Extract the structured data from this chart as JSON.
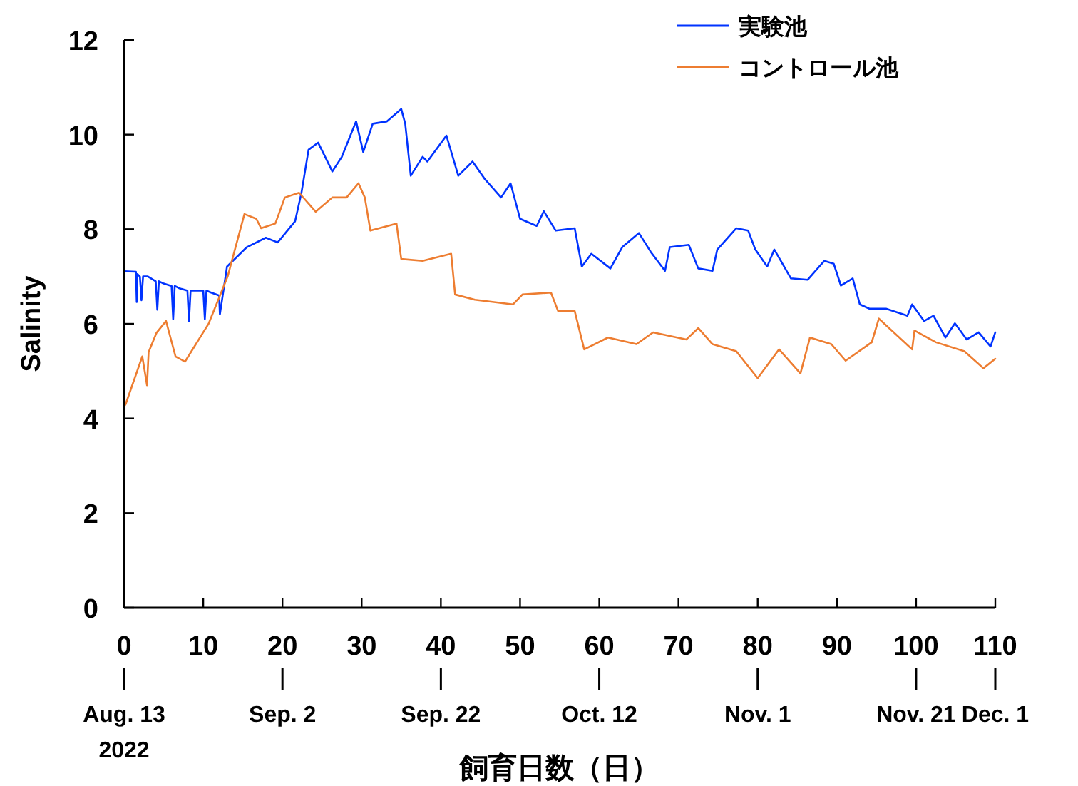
{
  "chart_data": {
    "type": "line",
    "ylabel": "Salinity",
    "xlabel": "飼育日数（日）",
    "xlim": [
      0,
      110
    ],
    "ylim": [
      0,
      12
    ],
    "xticks": [
      0,
      10,
      20,
      30,
      40,
      50,
      60,
      70,
      80,
      90,
      100,
      110
    ],
    "yticks": [
      0,
      2,
      4,
      6,
      8,
      10,
      12
    ],
    "grid": false,
    "legend": "top right",
    "marker": "none",
    "line_style": "solid",
    "x2lim": [
      "2022-08-13",
      "2022-12-01"
    ],
    "x2ticks": [
      {
        "value": "2022-08-13",
        "label": "Aug. 13\n2022"
      },
      {
        "value": "2022-09-02",
        "label": "Sep. 2"
      },
      {
        "value": "2022-09-22",
        "label": "Sep. 22"
      },
      {
        "value": "2022-10-12",
        "label": "Oct. 12"
      },
      {
        "value": "2022-11-01",
        "label": "Nov. 1"
      },
      {
        "value": "2022-11-21",
        "label": "Nov. 21"
      },
      {
        "value": "2022-12-01",
        "label": "Dec. 1"
      }
    ],
    "series": [
      {
        "name": "実験池",
        "color": "#0033ff",
        "x": [
          0,
          1.5,
          1.6,
          1.7,
          2,
          2.2,
          2.4,
          3,
          4,
          4.2,
          4.4,
          5,
          6,
          6.2,
          6.4,
          7,
          8,
          8.2,
          8.4,
          9,
          10,
          10.2,
          10.4,
          11,
          12,
          12.1,
          13,
          15.5,
          17.9,
          19.4,
          21.6,
          22.4,
          23.3,
          24.5,
          26.3,
          27.5,
          29.3,
          30.2,
          31.4,
          33.2,
          35,
          35.5,
          36.2,
          37.7,
          38.3,
          40.7,
          42.2,
          44,
          45.5,
          47.6,
          48.8,
          50,
          52.1,
          53,
          54.5,
          56.9,
          57.8,
          59,
          61.4,
          62.9,
          65,
          66.5,
          68.3,
          68.9,
          71.3,
          72.5,
          74.3,
          74.9,
          77.3,
          78.8,
          79.7,
          81.2,
          82.1,
          84.2,
          86.3,
          88.4,
          89.6,
          90.5,
          92,
          92.9,
          94.1,
          96.2,
          98.9,
          99.5,
          101,
          102.2,
          103.7,
          104.9,
          106.4,
          107.9,
          109.4,
          110
        ],
        "values": [
          7.11,
          7.1,
          6.46,
          7.05,
          7.0,
          6.5,
          7.0,
          7.0,
          6.9,
          6.3,
          6.9,
          6.85,
          6.8,
          6.1,
          6.8,
          6.75,
          6.7,
          6.05,
          6.7,
          6.7,
          6.7,
          6.1,
          6.7,
          6.66,
          6.6,
          6.2,
          7.21,
          7.62,
          7.82,
          7.72,
          8.17,
          8.77,
          9.68,
          9.83,
          9.22,
          9.53,
          10.28,
          9.63,
          10.23,
          10.28,
          10.54,
          10.23,
          9.13,
          9.53,
          9.43,
          9.98,
          9.13,
          9.43,
          9.07,
          8.67,
          8.97,
          8.22,
          8.07,
          8.38,
          7.97,
          8.02,
          7.21,
          7.48,
          7.17,
          7.62,
          7.92,
          7.52,
          7.12,
          7.62,
          7.67,
          7.17,
          7.12,
          7.57,
          8.02,
          7.97,
          7.57,
          7.21,
          7.57,
          6.96,
          6.93,
          7.33,
          7.27,
          6.81,
          6.96,
          6.41,
          6.32,
          6.32,
          6.17,
          6.41,
          6.06,
          6.17,
          5.71,
          6.01,
          5.67,
          5.82,
          5.52,
          5.82
        ]
      },
      {
        "name": "コントロール池",
        "color": "#ed7d31",
        "x": [
          0,
          0.2,
          2.3,
          2.9,
          3.1,
          4.1,
          5.3,
          6.5,
          7.7,
          10.7,
          13.1,
          15.2,
          16.7,
          17.3,
          19.1,
          20.3,
          22.1,
          24.2,
          26.3,
          28.1,
          29.6,
          30.4,
          31.1,
          34.4,
          35,
          37.7,
          41.3,
          41.8,
          44.3,
          49.1,
          50.3,
          53.9,
          54.8,
          56.9,
          58.1,
          61.1,
          64.7,
          66.8,
          71,
          72.5,
          74.3,
          77.3,
          80,
          82.7,
          85.4,
          86.6,
          89.3,
          91.1,
          94.4,
          95.3,
          99.5,
          99.8,
          102.5,
          106.1,
          108.5,
          110
        ],
        "values": [
          4.25,
          4.3,
          5.31,
          4.7,
          5.4,
          5.81,
          6.06,
          5.31,
          5.2,
          6.01,
          7.01,
          8.32,
          8.22,
          8.02,
          8.12,
          8.67,
          8.77,
          8.37,
          8.67,
          8.67,
          8.97,
          8.67,
          7.97,
          8.12,
          7.37,
          7.33,
          7.48,
          6.62,
          6.51,
          6.41,
          6.62,
          6.66,
          6.27,
          6.27,
          5.46,
          5.71,
          5.57,
          5.82,
          5.67,
          5.91,
          5.57,
          5.42,
          4.85,
          5.46,
          4.95,
          5.71,
          5.57,
          5.22,
          5.61,
          6.11,
          5.46,
          5.86,
          5.61,
          5.42,
          5.06,
          5.26
        ]
      }
    ]
  }
}
